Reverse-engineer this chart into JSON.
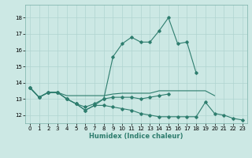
{
  "xlabel": "Humidex (Indice chaleur)",
  "ylabel": "",
  "xlim": [
    -0.5,
    23.5
  ],
  "ylim": [
    11.5,
    18.8
  ],
  "yticks": [
    12,
    13,
    14,
    15,
    16,
    17,
    18
  ],
  "xticks": [
    0,
    1,
    2,
    3,
    4,
    5,
    6,
    7,
    8,
    9,
    10,
    11,
    12,
    13,
    14,
    15,
    16,
    17,
    18,
    19,
    20,
    21,
    22,
    23
  ],
  "background_color": "#cce8e4",
  "grid_color": "#b0d4d0",
  "line_color": "#2e7d6e",
  "series": {
    "curve_max": [
      13.7,
      13.1,
      13.4,
      13.4,
      13.0,
      12.7,
      12.3,
      12.6,
      13.0,
      15.6,
      16.4,
      16.8,
      16.5,
      16.5,
      17.2,
      18.0,
      16.4,
      16.5,
      14.6,
      null,
      null,
      null,
      null,
      null
    ],
    "curve_flat": [
      13.7,
      13.1,
      13.4,
      13.4,
      13.2,
      13.2,
      13.2,
      13.2,
      13.2,
      13.3,
      13.35,
      13.35,
      13.35,
      13.35,
      13.5,
      13.5,
      13.5,
      13.5,
      13.5,
      13.5,
      13.2,
      null,
      null,
      null
    ],
    "curve_mid": [
      13.7,
      13.1,
      13.4,
      13.4,
      13.0,
      12.7,
      12.5,
      12.7,
      13.0,
      13.1,
      13.1,
      13.1,
      13.0,
      13.1,
      13.2,
      13.3,
      null,
      null,
      null,
      null,
      null,
      null,
      null,
      null
    ],
    "curve_min": [
      13.7,
      13.1,
      13.4,
      13.4,
      13.0,
      12.7,
      12.3,
      12.6,
      12.6,
      12.5,
      12.4,
      12.3,
      12.1,
      12.0,
      11.9,
      11.9,
      11.9,
      11.9,
      11.9,
      12.8,
      12.1,
      12.0,
      11.8,
      11.7
    ]
  }
}
